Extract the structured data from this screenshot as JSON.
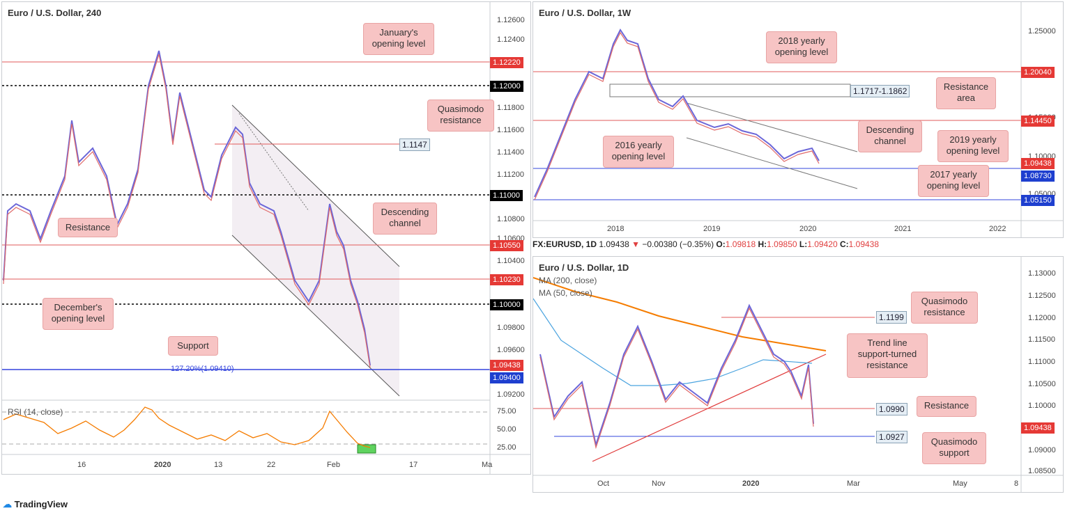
{
  "panel_a": {
    "title": "Euro / U.S. Dollar, 240",
    "rsi_label": "RSI (14, close)",
    "y_ticks": [
      "1.12600",
      "1.12400",
      "1.11800",
      "1.11600",
      "1.11400",
      "1.11200",
      "1.10800",
      "1.10600",
      "1.10400",
      "1.09800",
      "1.09600",
      "1.09200"
    ],
    "rsi_ticks": [
      "75.00",
      "50.00",
      "25.00"
    ],
    "x_ticks": [
      "16",
      "2020",
      "13",
      "22",
      "Feb",
      "17",
      "Ma"
    ],
    "tags": [
      {
        "label": "1.12220",
        "color": "#e53935"
      },
      {
        "label": "1.12000",
        "color": "#000000"
      },
      {
        "label": "1.11000",
        "color": "#000000"
      },
      {
        "label": "1.10550",
        "color": "#e53935"
      },
      {
        "label": "1.10230",
        "color": "#e53935"
      },
      {
        "label": "1.10000",
        "color": "#000000"
      },
      {
        "label": "1.09438",
        "color": "#e53935"
      },
      {
        "label": "1.09400",
        "color": "#1e3fcf"
      }
    ],
    "notes": {
      "january": "January's\nopening level",
      "quasimodo": "Quasimodo\nresistance",
      "descending": "Descending\nchannel",
      "resistance": "Resistance",
      "december": "December's\nopening level",
      "support": "Support"
    },
    "level_box": "1.1147",
    "fib_label": "127.20%(1.09410)"
  },
  "panel_b": {
    "title": "Euro / U.S. Dollar, 1W",
    "y_ticks": [
      "1.25000",
      "1.15000",
      "1.10000",
      "1.05000"
    ],
    "x_ticks": [
      "2018",
      "2019",
      "2020",
      "2021",
      "2022"
    ],
    "tags": [
      {
        "label": "1.20040",
        "color": "#e53935"
      },
      {
        "label": "1.14450",
        "color": "#e53935"
      },
      {
        "label": "1.09438",
        "color": "#e53935"
      },
      {
        "label": "1.08730",
        "color": "#1e3fcf"
      },
      {
        "label": "1.05150",
        "color": "#1e3fcf"
      }
    ],
    "notes": {
      "y2018": "2018 yearly\nopening level",
      "resistance_area": "Resistance\narea",
      "descending": "Descending\nchannel",
      "y2019": "2019 yearly\nopening level",
      "y2016": "2016 yearly\nopening level",
      "y2017": "2017 yearly\nopening level"
    },
    "level_box": "1.1717-1.1862"
  },
  "header": {
    "symbol": "FX:EURUSD, 1D",
    "price": "1.09438",
    "change": "−0.00380 (−0.35%)",
    "o_label": "O:",
    "o": "1.09818",
    "h_label": "H:",
    "h": "1.09850",
    "l_label": "L:",
    "l": "1.09420",
    "c_label": "C:",
    "c": "1.09438"
  },
  "panel_c": {
    "title": "Euro / U.S. Dollar, 1D",
    "ma200": "MA (200, close)",
    "ma50": "MA (50, close)",
    "y_ticks": [
      "1.13000",
      "1.12500",
      "1.12000",
      "1.11500",
      "1.11000",
      "1.10500",
      "1.10000",
      "1.09000",
      "1.08500"
    ],
    "x_ticks": [
      "Oct",
      "Nov",
      "2020",
      "Mar",
      "May",
      "8"
    ],
    "tags": [
      {
        "label": "1.09438",
        "color": "#e53935"
      }
    ],
    "notes": {
      "quasimodo_res": "Quasimodo\nresistance",
      "trend": "Trend line\nsupport-turned\nresistance",
      "resistance": "Resistance",
      "quasimodo_sup": "Quasimodo\nsupport"
    },
    "level_1199": "1.1199",
    "level_0990": "1.0990",
    "level_0927": "1.0927"
  },
  "brand": "TradingView",
  "chart_data": [
    {
      "type": "candlestick",
      "title": "Euro / U.S. Dollar, 240",
      "levels": [
        1.1222,
        1.12,
        1.1147,
        1.11,
        1.1055,
        1.1023,
        1.1,
        1.0941
      ],
      "last": 1.09438,
      "ylim": [
        1.091,
        1.127
      ]
    },
    {
      "type": "candlestick",
      "title": "Euro / U.S. Dollar, 1W",
      "levels": [
        1.2004,
        1.1862,
        1.1717,
        1.1445,
        1.0873,
        1.0515
      ],
      "last": 1.09438,
      "ylim": [
        1.035,
        1.26
      ]
    },
    {
      "type": "candlestick",
      "title": "Euro / U.S. Dollar, 1D",
      "levels": [
        1.1199,
        1.099,
        1.0927
      ],
      "last": 1.09438,
      "ylim": [
        1.083,
        1.131
      ]
    }
  ]
}
